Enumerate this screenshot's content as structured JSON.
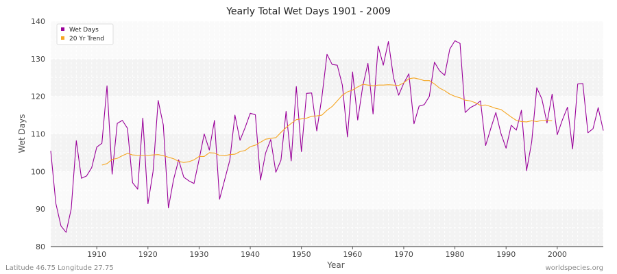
{
  "chart_data": {
    "type": "line",
    "title": "Yearly Total Wet Days 1901 - 2009",
    "xlabel": "Year",
    "ylabel": "Wet Days",
    "xlim": [
      1901,
      2009
    ],
    "ylim": [
      80,
      140
    ],
    "x_ticks": [
      1910,
      1920,
      1930,
      1940,
      1950,
      1960,
      1970,
      1980,
      1990,
      2000
    ],
    "y_ticks": [
      80,
      90,
      100,
      110,
      120,
      130,
      140
    ],
    "grid": true,
    "legend_position": "top-left",
    "series": [
      {
        "name": "Wet Days",
        "color": "#990099",
        "x": [
          1901,
          1902,
          1903,
          1904,
          1905,
          1906,
          1907,
          1908,
          1909,
          1910,
          1911,
          1912,
          1913,
          1914,
          1915,
          1916,
          1917,
          1918,
          1919,
          1920,
          1921,
          1922,
          1923,
          1924,
          1925,
          1926,
          1927,
          1928,
          1929,
          1930,
          1931,
          1932,
          1933,
          1934,
          1935,
          1936,
          1937,
          1938,
          1939,
          1940,
          1941,
          1942,
          1943,
          1944,
          1945,
          1946,
          1947,
          1948,
          1949,
          1950,
          1951,
          1952,
          1953,
          1954,
          1955,
          1956,
          1957,
          1958,
          1959,
          1960,
          1961,
          1962,
          1963,
          1964,
          1965,
          1966,
          1967,
          1968,
          1969,
          1970,
          1971,
          1972,
          1973,
          1974,
          1975,
          1976,
          1977,
          1978,
          1979,
          1980,
          1981,
          1982,
          1983,
          1984,
          1985,
          1986,
          1987,
          1988,
          1989,
          1990,
          1991,
          1992,
          1993,
          1994,
          1995,
          1996,
          1997,
          1998,
          1999,
          2000,
          2001,
          2002,
          2003,
          2004,
          2005,
          2006,
          2007,
          2008,
          2009
        ],
        "values": [
          105.5,
          91.5,
          85.5,
          83.8,
          90.0,
          108.2,
          98.2,
          98.8,
          101.0,
          106.5,
          107.5,
          122.8,
          99.3,
          112.8,
          113.6,
          111.5,
          97.0,
          95.3,
          114.2,
          91.4,
          100.0,
          118.9,
          112.4,
          90.3,
          97.8,
          103.1,
          98.5,
          97.5,
          96.8,
          103.2,
          110.0,
          105.7,
          113.6,
          92.6,
          97.8,
          103.0,
          115.0,
          108.3,
          111.7,
          115.5,
          115.1,
          97.7,
          104.9,
          108.5,
          99.8,
          103.0,
          116.0,
          102.8,
          122.6,
          105.3,
          120.8,
          120.9,
          110.8,
          119.8,
          131.2,
          128.5,
          128.3,
          123.0,
          109.2,
          126.5,
          113.7,
          122.8,
          128.8,
          115.3,
          133.4,
          128.3,
          134.6,
          125.0,
          120.3,
          123.5,
          126.0,
          112.7,
          117.4,
          117.8,
          120.0,
          129.1,
          126.8,
          125.6,
          132.6,
          134.8,
          134.1,
          115.7,
          117.0,
          117.7,
          118.8,
          106.9,
          111.4,
          115.7,
          110.1,
          106.2,
          112.3,
          111.0,
          116.3,
          100.2,
          107.8,
          122.3,
          119.3,
          112.9,
          120.6,
          109.8,
          113.7,
          117.1,
          106.0,
          123.3,
          123.4,
          110.3,
          111.4,
          117.0,
          110.9
        ]
      },
      {
        "name": "20 Yr Trend",
        "color": "#f5a623",
        "x": [
          1911,
          1912,
          1913,
          1914,
          1915,
          1916,
          1917,
          1918,
          1919,
          1920,
          1921,
          1922,
          1923,
          1924,
          1925,
          1926,
          1927,
          1928,
          1929,
          1930,
          1931,
          1932,
          1933,
          1934,
          1935,
          1936,
          1937,
          1938,
          1939,
          1940,
          1941,
          1942,
          1943,
          1944,
          1945,
          1946,
          1947,
          1948,
          1949,
          1950,
          1951,
          1952,
          1953,
          1954,
          1955,
          1956,
          1957,
          1958,
          1959,
          1960,
          1961,
          1962,
          1963,
          1964,
          1965,
          1966,
          1967,
          1968,
          1969,
          1970,
          1971,
          1972,
          1973,
          1974,
          1975,
          1976,
          1977,
          1978,
          1979,
          1980,
          1981,
          1982,
          1983,
          1984,
          1985,
          1986,
          1987,
          1988,
          1989,
          1990,
          1991,
          1992,
          1993,
          1994,
          1995,
          1996,
          1997,
          1998,
          1999
        ],
        "values": [
          101.7,
          102.1,
          103.2,
          103.5,
          104.2,
          104.8,
          104.4,
          104.3,
          104.3,
          104.3,
          104.4,
          104.5,
          104.2,
          103.8,
          103.4,
          102.7,
          102.4,
          102.6,
          103.1,
          104.0,
          104.0,
          105.0,
          104.9,
          104.3,
          104.2,
          104.5,
          104.6,
          105.3,
          105.6,
          106.6,
          107.0,
          107.8,
          108.6,
          108.8,
          109.0,
          110.4,
          111.7,
          112.8,
          113.8,
          114.0,
          114.2,
          114.7,
          114.8,
          115.0,
          116.3,
          117.3,
          118.8,
          120.3,
          121.2,
          121.7,
          122.5,
          123.2,
          123.0,
          122.8,
          123.0,
          123.0,
          123.1,
          123.0,
          122.9,
          123.6,
          124.7,
          124.9,
          124.6,
          124.2,
          124.2,
          123.3,
          122.2,
          121.5,
          120.6,
          120.0,
          119.6,
          119.0,
          118.8,
          118.3,
          117.6,
          117.7,
          117.3,
          116.8,
          116.5,
          115.5,
          114.5,
          113.6,
          113.3,
          113.2,
          113.5,
          113.3,
          113.6,
          113.6,
          113.5
        ]
      }
    ]
  },
  "footer": {
    "left": "Latitude 46.75 Longitude 27.75",
    "right": "worldspecies.org"
  }
}
